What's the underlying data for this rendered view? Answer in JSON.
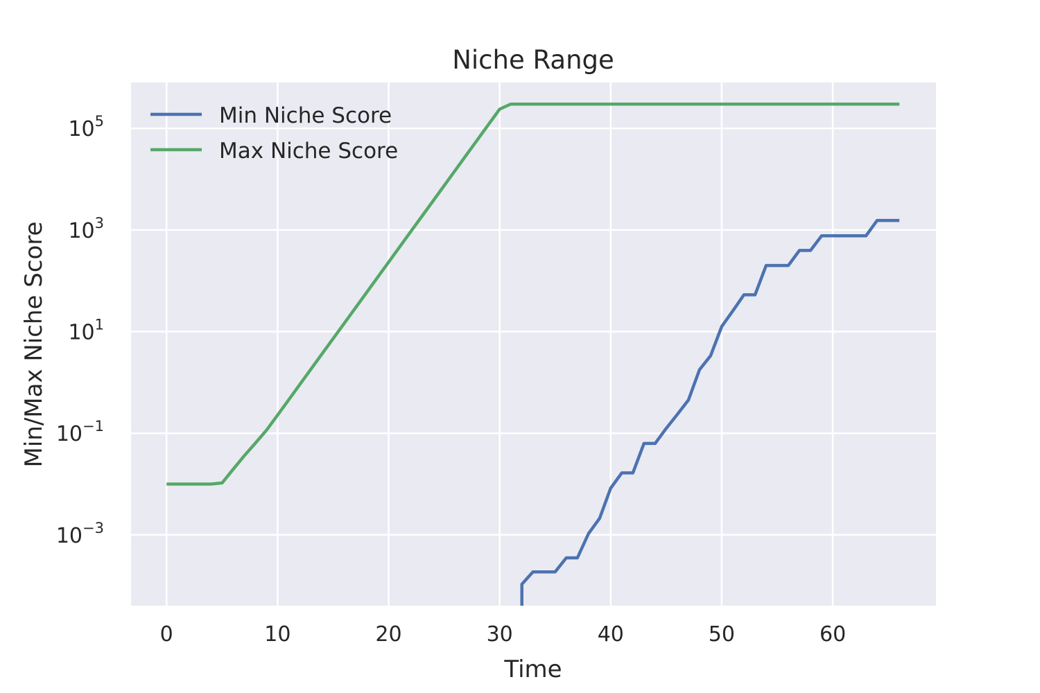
{
  "chart_data": {
    "type": "line",
    "title": "Niche Range",
    "xlabel": "Time",
    "ylabel": "Min/Max Niche Score",
    "yscale": "log",
    "xlim": [
      -3.2,
      69.3
    ],
    "ylim": [
      4.04e-05,
      800000
    ],
    "grid": true,
    "legend_position": "top-left",
    "x_ticks": [
      0,
      10,
      20,
      30,
      40,
      50,
      60
    ],
    "x_tick_labels": [
      "0",
      "10",
      "20",
      "30",
      "40",
      "50",
      "60"
    ],
    "y_ticks": [
      0.001,
      0.1,
      10,
      1000,
      100000
    ],
    "y_tick_labels": [
      {
        "base": "10",
        "exp": "−3"
      },
      {
        "base": "10",
        "exp": "−1"
      },
      {
        "base": "10",
        "exp": "1"
      },
      {
        "base": "10",
        "exp": "3"
      },
      {
        "base": "10",
        "exp": "5"
      }
    ],
    "colors": {
      "background": "#eaeaf2",
      "min": "#4c72b0",
      "max": "#55a868"
    },
    "series": [
      {
        "name": "Min Niche Score",
        "color": "#4c72b0",
        "x": [
          32,
          32,
          33,
          34,
          35,
          36,
          37,
          38,
          39,
          40,
          41,
          42,
          43,
          44,
          45,
          46,
          47,
          48,
          49,
          50,
          51,
          52,
          53,
          54,
          55,
          56,
          57,
          58,
          59,
          60,
          61,
          62,
          63,
          64,
          65,
          66
        ],
        "y": [
          4.04e-05,
          0.000107,
          0.000187,
          0.000187,
          0.000187,
          0.000353,
          0.000353,
          0.00106,
          0.00211,
          0.0083,
          0.0166,
          0.0166,
          0.063,
          0.063,
          0.125,
          0.235,
          0.45,
          1.78,
          3.35,
          12.6,
          25.5,
          53,
          53,
          200,
          200,
          200,
          395,
          395,
          770,
          770,
          770,
          770,
          770,
          1540,
          1540,
          1540
        ]
      },
      {
        "name": "Max Niche Score",
        "color": "#55a868",
        "x": [
          0,
          1,
          2,
          3,
          4,
          5,
          6,
          7,
          8,
          9,
          10,
          11,
          12,
          13,
          14,
          15,
          16,
          17,
          18,
          19,
          20,
          21,
          22,
          23,
          24,
          25,
          26,
          27,
          28,
          29,
          30,
          31,
          40,
          50,
          60,
          66
        ],
        "y": [
          0.01,
          0.01,
          0.01,
          0.01,
          0.01,
          0.0105,
          0.0195,
          0.036,
          0.064,
          0.115,
          0.228,
          0.455,
          0.91,
          1.82,
          3.64,
          7.28,
          14.56,
          29.1,
          58.3,
          116.5,
          233,
          466,
          932,
          1864,
          3729,
          7457,
          14915,
          29830,
          59659,
          119318,
          238636,
          300000,
          300000,
          300000,
          300000,
          300000
        ]
      }
    ]
  }
}
